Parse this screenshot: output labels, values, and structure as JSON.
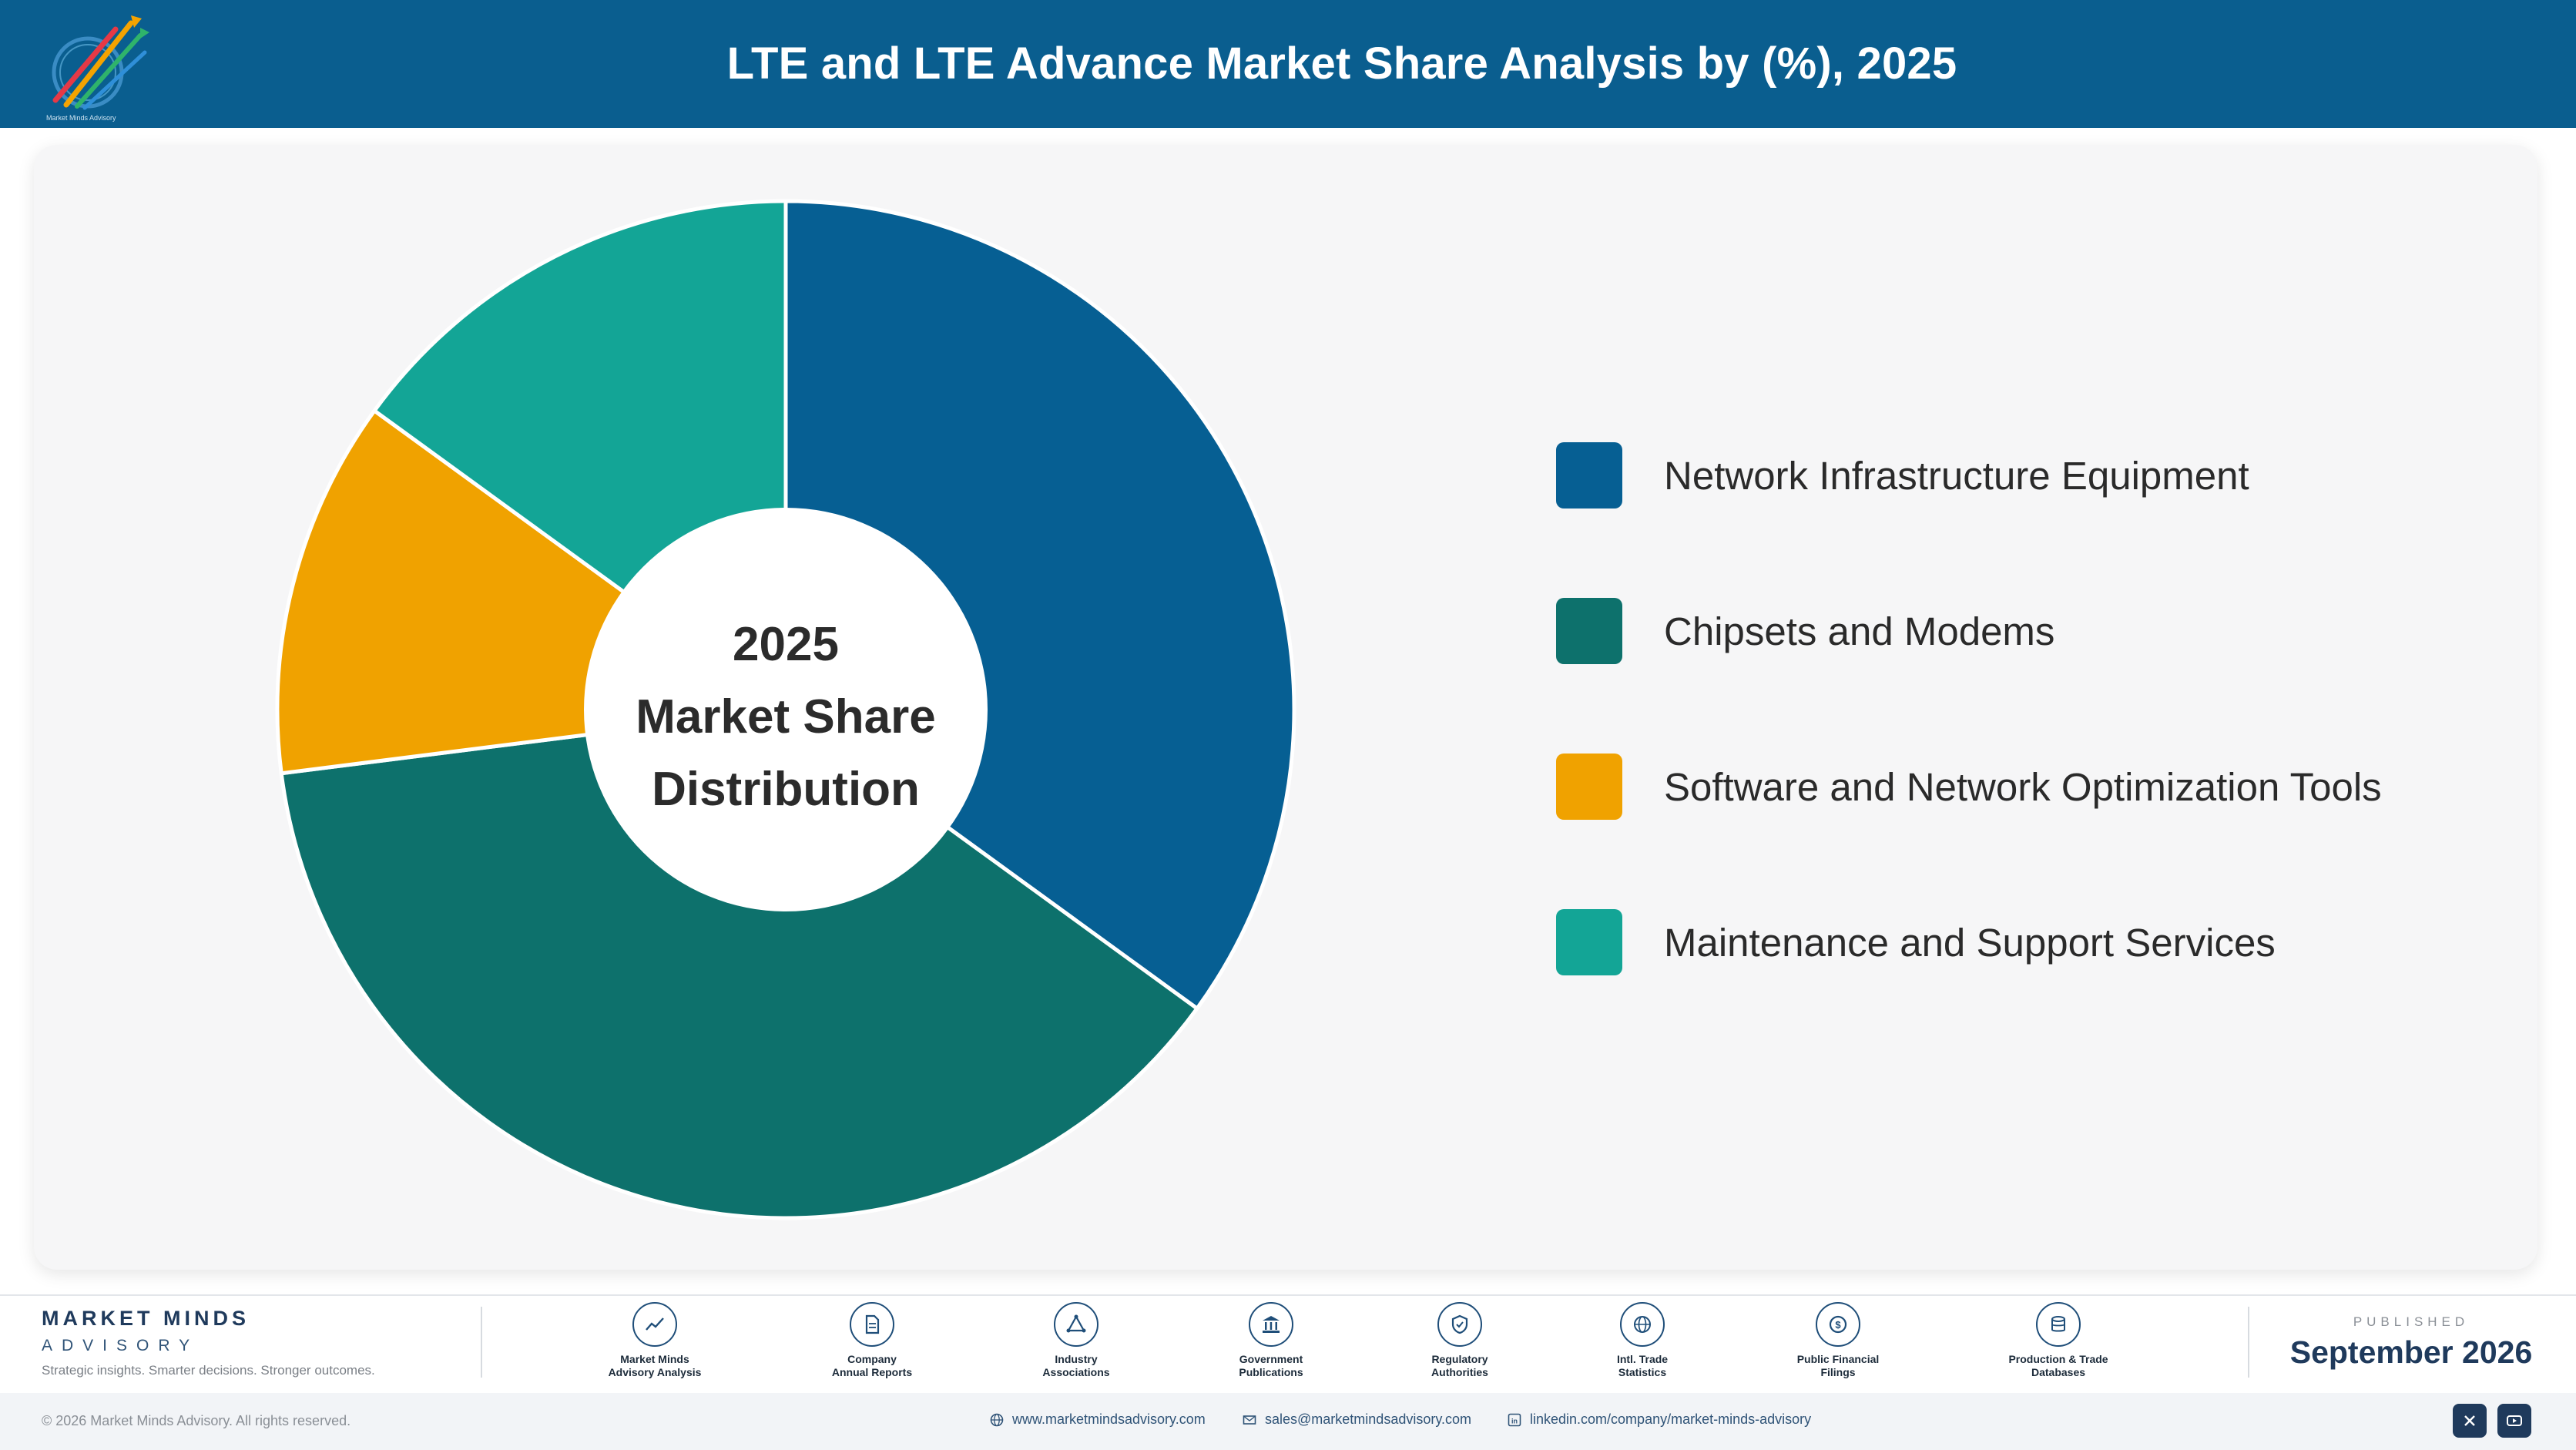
{
  "header": {
    "title": "LTE and LTE Advance Market Share Analysis by (%), 2025",
    "logo_icon": "market-minds-logo"
  },
  "chart_data": {
    "type": "pie",
    "style": "donut",
    "center_label": [
      "2025",
      "Market Share",
      "Distribution"
    ],
    "categories": [
      "Network Infrastructure Equipment",
      "Chipsets and Modems",
      "Software and Network Optimization Tools",
      "Maintenance and Support Services"
    ],
    "values": [
      35,
      38,
      12,
      15
    ],
    "colors": [
      "#065f93",
      "#0d716c",
      "#f0a200",
      "#13a596"
    ],
    "legend_position": "right"
  },
  "footer": {
    "brand_name": "MARKET MINDS",
    "brand_sub": "ADVISORY",
    "tagline": "Strategic insights. Smarter decisions. Stronger outcomes.",
    "sources": [
      {
        "line1": "Market Minds",
        "line2": "Advisory Analysis",
        "icon": "trend-line-icon"
      },
      {
        "line1": "Company",
        "line2": "Annual Reports",
        "icon": "document-icon"
      },
      {
        "line1": "Industry",
        "line2": "Associations",
        "icon": "network-icon"
      },
      {
        "line1": "Government",
        "line2": "Publications",
        "icon": "bank-icon"
      },
      {
        "line1": "Regulatory",
        "line2": "Authorities",
        "icon": "shield-icon"
      },
      {
        "line1": "Intl. Trade",
        "line2": "Statistics",
        "icon": "globe-icon"
      },
      {
        "line1": "Public Financial",
        "line2": "Filings",
        "icon": "coin-icon"
      },
      {
        "line1": "Production & Trade",
        "line2": "Databases",
        "icon": "database-icon"
      }
    ],
    "published_label": "PUBLISHED",
    "published_date": "September 2026",
    "copyright": "© 2026 Market Minds Advisory. All rights reserved.",
    "website": "www.marketmindsadvisory.com",
    "email": "sales@marketmindsadvisory.com",
    "linkedin": "linkedin.com/company/market-minds-advisory",
    "social": [
      "x-icon",
      "youtube-icon"
    ]
  }
}
